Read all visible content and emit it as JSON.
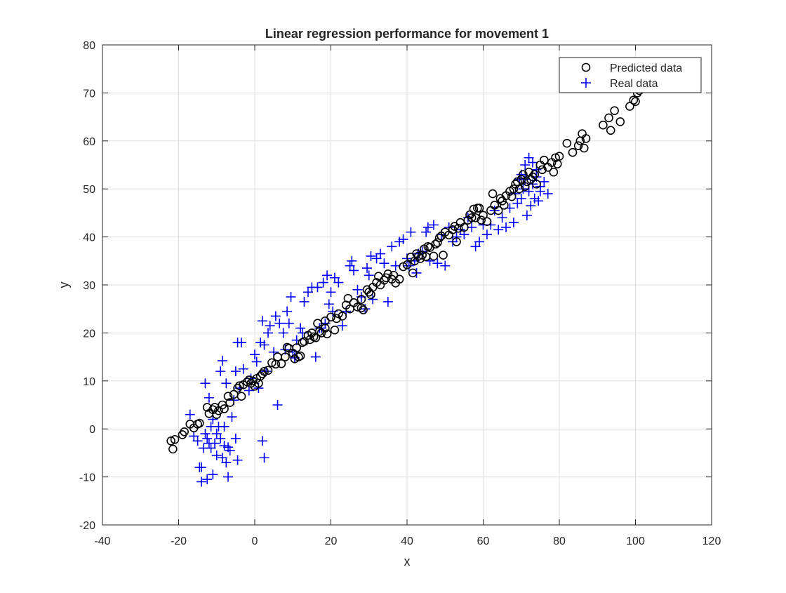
{
  "chart_data": {
    "type": "scatter",
    "title": "Linear regression performance for movement 1",
    "xlabel": "x",
    "ylabel": "y",
    "xlim": [
      -40,
      120
    ],
    "ylim": [
      -20,
      80
    ],
    "xticks": [
      -40,
      -20,
      0,
      20,
      40,
      60,
      80,
      100,
      120
    ],
    "yticks": [
      -20,
      -10,
      0,
      10,
      20,
      30,
      40,
      50,
      60,
      70,
      80
    ],
    "grid": true,
    "legend_position": "top-right",
    "series": [
      {
        "name": "Predicted data",
        "marker": "circle",
        "color": "#000000",
        "points": [
          [
            -22,
            -2.5
          ],
          [
            -21.5,
            -4.2
          ],
          [
            -21,
            -2.2
          ],
          [
            -19,
            -1.2
          ],
          [
            -18.5,
            -0.6
          ],
          [
            -17,
            1
          ],
          [
            -16,
            0.2
          ],
          [
            -15,
            1
          ],
          [
            -14.5,
            1.2
          ],
          [
            -12.5,
            4.5
          ],
          [
            -12,
            3.2
          ],
          [
            -11,
            4
          ],
          [
            -10.5,
            4.5
          ],
          [
            -10,
            3
          ],
          [
            -9.5,
            3.8
          ],
          [
            -8.5,
            5
          ],
          [
            -8,
            4.2
          ],
          [
            -7,
            6.8
          ],
          [
            -6.5,
            5.5
          ],
          [
            -5.5,
            7.2
          ],
          [
            -4.5,
            8.5
          ],
          [
            -4,
            9
          ],
          [
            -3.5,
            6.8
          ],
          [
            -3,
            9.2
          ],
          [
            -2,
            9.8
          ],
          [
            -1.5,
            10.2
          ],
          [
            -1,
            9.5
          ],
          [
            -0.5,
            10
          ],
          [
            0,
            8.9
          ],
          [
            0.5,
            10.5
          ],
          [
            1,
            9.5
          ],
          [
            1.5,
            11
          ],
          [
            2,
            11.5
          ],
          [
            2.5,
            12
          ],
          [
            3.5,
            12.2
          ],
          [
            4.5,
            13.8
          ],
          [
            5.5,
            13.5
          ],
          [
            6,
            15
          ],
          [
            7,
            13.6
          ],
          [
            8,
            15
          ],
          [
            8.5,
            17
          ],
          [
            9,
            16.8
          ],
          [
            10,
            15.8
          ],
          [
            10.5,
            14.6
          ],
          [
            11,
            16.9
          ],
          [
            11.5,
            15
          ],
          [
            12,
            15.2
          ],
          [
            12.5,
            18
          ],
          [
            13,
            18.2
          ],
          [
            14,
            19.5
          ],
          [
            14.5,
            18.6
          ],
          [
            15,
            20
          ],
          [
            15.5,
            19.2
          ],
          [
            16,
            19
          ],
          [
            16.5,
            22
          ],
          [
            17,
            20.3
          ],
          [
            17.5,
            20
          ],
          [
            18.5,
            21
          ],
          [
            18.5,
            22.5
          ],
          [
            19,
            19.8
          ],
          [
            20,
            23.3
          ],
          [
            21,
            20.6
          ],
          [
            21.5,
            23
          ],
          [
            22,
            24
          ],
          [
            23,
            23.5
          ],
          [
            24,
            25.8
          ],
          [
            24.5,
            27.2
          ],
          [
            25,
            25
          ],
          [
            26,
            26.3
          ],
          [
            27,
            25.4
          ],
          [
            28,
            27
          ],
          [
            28,
            25.2
          ],
          [
            28.5,
            24.8
          ],
          [
            29.5,
            29
          ],
          [
            30,
            28.5
          ],
          [
            30.5,
            28
          ],
          [
            31,
            29.5
          ],
          [
            32,
            30.5
          ],
          [
            32.5,
            31.8
          ],
          [
            33,
            30
          ],
          [
            34,
            31
          ],
          [
            34.5,
            31.5
          ],
          [
            35,
            32.3
          ],
          [
            36,
            31.2
          ],
          [
            36.5,
            32
          ],
          [
            37,
            30.4
          ],
          [
            38,
            31.2
          ],
          [
            39,
            33.8
          ],
          [
            40,
            34.2
          ],
          [
            41,
            35.8
          ],
          [
            41.5,
            32.5
          ],
          [
            42,
            35
          ],
          [
            42.5,
            36.5
          ],
          [
            43,
            36
          ],
          [
            43.5,
            35.5
          ],
          [
            44,
            36.2
          ],
          [
            44.5,
            37.5
          ],
          [
            45,
            35.9
          ],
          [
            45.5,
            38
          ],
          [
            46,
            37.8
          ],
          [
            47,
            36
          ],
          [
            47.5,
            38.5
          ],
          [
            48,
            38.8
          ],
          [
            48.5,
            39.8
          ],
          [
            49,
            40.2
          ],
          [
            49.5,
            36.2
          ],
          [
            50,
            41
          ],
          [
            51,
            40.4
          ],
          [
            52,
            41.5
          ],
          [
            52.5,
            42.2
          ],
          [
            53,
            39
          ],
          [
            53.5,
            41.8
          ],
          [
            54,
            43
          ],
          [
            55,
            42
          ],
          [
            56,
            43.5
          ],
          [
            56.5,
            44.6
          ],
          [
            57,
            44
          ],
          [
            57.5,
            45.8
          ],
          [
            58,
            44
          ],
          [
            58.5,
            46
          ],
          [
            59,
            46
          ],
          [
            59.5,
            43.5
          ],
          [
            60,
            44.5
          ],
          [
            61,
            43.2
          ],
          [
            62,
            45.5
          ],
          [
            62.5,
            49
          ],
          [
            63,
            46.6
          ],
          [
            64,
            45.5
          ],
          [
            64.5,
            48
          ],
          [
            65,
            47.5
          ],
          [
            65.5,
            46.6
          ],
          [
            66,
            48.6
          ],
          [
            67,
            49.5
          ],
          [
            67.5,
            48.4
          ],
          [
            68,
            50
          ],
          [
            68.5,
            51
          ],
          [
            69,
            51.5
          ],
          [
            69.5,
            50
          ],
          [
            70,
            52
          ],
          [
            70.5,
            53
          ],
          [
            71,
            50.5
          ],
          [
            71.5,
            51.5
          ],
          [
            72,
            53.5
          ],
          [
            72.5,
            52
          ],
          [
            73,
            52.5
          ],
          [
            73.5,
            53
          ],
          [
            74,
            51
          ],
          [
            75,
            55
          ],
          [
            75.5,
            54
          ],
          [
            76,
            56
          ],
          [
            77,
            54.5
          ],
          [
            78,
            55.5
          ],
          [
            78.5,
            53.5
          ],
          [
            79,
            56.5
          ],
          [
            79.5,
            55.2
          ],
          [
            80,
            56.8
          ],
          [
            82,
            59.5
          ],
          [
            83.5,
            57.6
          ],
          [
            85,
            59
          ],
          [
            85.5,
            60
          ],
          [
            86,
            61.5
          ],
          [
            86.5,
            58.5
          ],
          [
            87,
            60.5
          ],
          [
            91.5,
            63.3
          ],
          [
            93,
            64.8
          ],
          [
            93.5,
            62.2
          ],
          [
            94.5,
            66.3
          ],
          [
            96,
            64
          ],
          [
            98.5,
            67.2
          ],
          [
            99.5,
            68.5
          ],
          [
            100,
            68.2
          ],
          [
            100.5,
            70
          ],
          [
            101,
            70.5
          ]
        ]
      },
      {
        "name": "Real data",
        "marker": "plus",
        "color": "#0000ff",
        "points": [
          [
            -17,
            3
          ],
          [
            -16,
            -1.5
          ],
          [
            -15,
            -2.5
          ],
          [
            -14.5,
            -8
          ],
          [
            -14,
            -11
          ],
          [
            -14,
            -8
          ],
          [
            -13.5,
            -4
          ],
          [
            -13,
            -1
          ],
          [
            -13,
            9.5
          ],
          [
            -12.5,
            -2
          ],
          [
            -12.5,
            -10.5
          ],
          [
            -12,
            6.5
          ],
          [
            -12,
            -3
          ],
          [
            -11.5,
            0.5
          ],
          [
            -11.5,
            -4
          ],
          [
            -11,
            2
          ],
          [
            -11,
            -9.5
          ],
          [
            -10.5,
            -3
          ],
          [
            -10,
            -1
          ],
          [
            -10,
            -5.5
          ],
          [
            -9.5,
            0.5
          ],
          [
            -9,
            12
          ],
          [
            -9,
            -2
          ],
          [
            -8.5,
            14.2
          ],
          [
            -8.5,
            -6
          ],
          [
            -8,
            -3.5
          ],
          [
            -8,
            0.5
          ],
          [
            -7.5,
            -7
          ],
          [
            -7.5,
            9.5
          ],
          [
            -7,
            -3.8
          ],
          [
            -7,
            -10
          ],
          [
            -6.5,
            -4.5
          ],
          [
            -6,
            2.5
          ],
          [
            -5.5,
            6
          ],
          [
            -5,
            12
          ],
          [
            -5,
            -2
          ],
          [
            -4.5,
            -6.5
          ],
          [
            -4.5,
            18
          ],
          [
            -4,
            8.5
          ],
          [
            -3.5,
            18
          ],
          [
            -3,
            12.5
          ],
          [
            -1.5,
            8
          ],
          [
            -1,
            10.5
          ],
          [
            0,
            15.5
          ],
          [
            0.5,
            14
          ],
          [
            1,
            8.5
          ],
          [
            1.5,
            18
          ],
          [
            2,
            22.5
          ],
          [
            2,
            -2.5
          ],
          [
            2.5,
            -6
          ],
          [
            2.5,
            17.5
          ],
          [
            3,
            12
          ],
          [
            3.5,
            20
          ],
          [
            4,
            21.5
          ],
          [
            5,
            16
          ],
          [
            5.5,
            23.5
          ],
          [
            6,
            5
          ],
          [
            6.5,
            22
          ],
          [
            7.5,
            20
          ],
          [
            8,
            16.5
          ],
          [
            8.5,
            24.5
          ],
          [
            9,
            22
          ],
          [
            9.5,
            27.5
          ],
          [
            10,
            16
          ],
          [
            10.5,
            14.8
          ],
          [
            11,
            18.5
          ],
          [
            12,
            21
          ],
          [
            12.5,
            20
          ],
          [
            13,
            26.5
          ],
          [
            14,
            28.5
          ],
          [
            15,
            29.5
          ],
          [
            16,
            15
          ],
          [
            16.5,
            29.5
          ],
          [
            17,
            21
          ],
          [
            17.5,
            21
          ],
          [
            18,
            30.5
          ],
          [
            18.5,
            22
          ],
          [
            19,
            32
          ],
          [
            19.5,
            26
          ],
          [
            20,
            28.5
          ],
          [
            20.5,
            24.5
          ],
          [
            21,
            31.5
          ],
          [
            22,
            30.5
          ],
          [
            23,
            21.5
          ],
          [
            24,
            24.5
          ],
          [
            25,
            34
          ],
          [
            25.5,
            35
          ],
          [
            26,
            33
          ],
          [
            27,
            29
          ],
          [
            28,
            27.5
          ],
          [
            29,
            25
          ],
          [
            29.5,
            33.5
          ],
          [
            30,
            32
          ],
          [
            30.5,
            36
          ],
          [
            31,
            27
          ],
          [
            32,
            35.5
          ],
          [
            33,
            36.5
          ],
          [
            34,
            34.5
          ],
          [
            35,
            26.5
          ],
          [
            36,
            38
          ],
          [
            37,
            34
          ],
          [
            38,
            39
          ],
          [
            39,
            39.5
          ],
          [
            40,
            35.5
          ],
          [
            40.5,
            34
          ],
          [
            41,
            41
          ],
          [
            42,
            35
          ],
          [
            42.5,
            32.5
          ],
          [
            43,
            36.5
          ],
          [
            44,
            37
          ],
          [
            45,
            41
          ],
          [
            45.5,
            42
          ],
          [
            46,
            35
          ],
          [
            47,
            42.5
          ],
          [
            48,
            34.5
          ],
          [
            49,
            40.5
          ],
          [
            50,
            34
          ],
          [
            51,
            42
          ],
          [
            52,
            39
          ],
          [
            53,
            40
          ],
          [
            54,
            41.5
          ],
          [
            55,
            40.5
          ],
          [
            56,
            44
          ],
          [
            57,
            42
          ],
          [
            58,
            38
          ],
          [
            59,
            39
          ],
          [
            60,
            42.5
          ],
          [
            61,
            40.5
          ],
          [
            62,
            42.5
          ],
          [
            63,
            45.5
          ],
          [
            64,
            41.5
          ],
          [
            65,
            44
          ],
          [
            66,
            42
          ],
          [
            67,
            46
          ],
          [
            68,
            43
          ],
          [
            68.5,
            49
          ],
          [
            69,
            47
          ],
          [
            69.5,
            52
          ],
          [
            70,
            48
          ],
          [
            70.5,
            50
          ],
          [
            71,
            55
          ],
          [
            71.5,
            44.5
          ],
          [
            72,
            49.5
          ],
          [
            72.5,
            46.5
          ],
          [
            73,
            51
          ],
          [
            73.5,
            48
          ],
          [
            74,
            52.5
          ],
          [
            74.5,
            47.5
          ],
          [
            75,
            50.5
          ],
          [
            76,
            51.5
          ],
          [
            77,
            49
          ],
          [
            72,
            56.5
          ],
          [
            73,
            55.5
          ],
          [
            70,
            53
          ],
          [
            71,
            52
          ],
          [
            74,
            54
          ],
          [
            75,
            49.5
          ]
        ]
      }
    ]
  }
}
